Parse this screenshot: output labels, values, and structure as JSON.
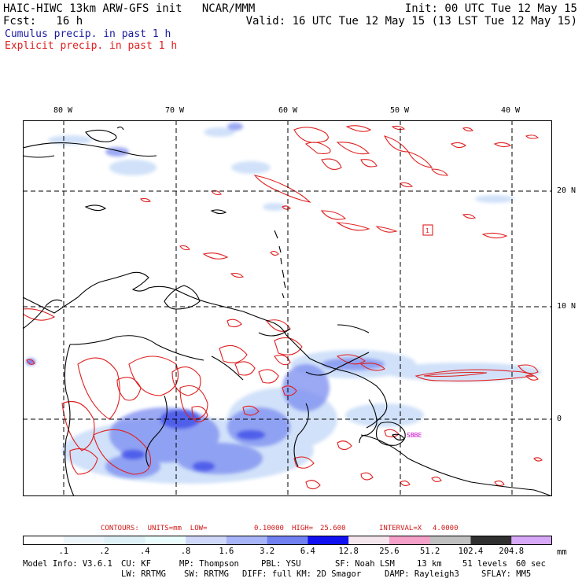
{
  "header": {
    "line1_left": "HAIC-HIWC 13km ARW-GFS init   NCAR/MMM",
    "line1_right": "Init: 00 UTC Tue 12 May 15",
    "line2_left": "Fcst:   16 h",
    "line2_right": "Valid: 16 UTC Tue 12 May 15 (13 LST Tue 12 May 15)",
    "legend_cumulus": "Cumulus precip. in past 1 h",
    "legend_explicit": "Explicit precip. in past 1 h"
  },
  "map": {
    "lon_labels": [
      "80 W",
      "70 W",
      "60 W",
      "50 W",
      "40 W"
    ],
    "lat_labels": [
      "20 N",
      "10 N",
      "0"
    ],
    "place_labels": [
      "SBBE"
    ],
    "box_label": "1",
    "colors": {
      "coast": "#000000",
      "grid": "#000000",
      "explicit_contour": "#e02020",
      "cumulus_light": "#c8dcf8",
      "cumulus_mid": "#7a8cf0",
      "cumulus_dark": "#3a4ae8",
      "place_label": "#cc00cc"
    }
  },
  "contours_line": {
    "prefix": "CONTOURS:  UNITS=mm  LOW=",
    "low": "0.10000",
    "high_label": "HIGH=",
    "high": "25.600",
    "interval_label": "INTERVAL=X",
    "interval": "4.0000"
  },
  "colorbar": {
    "ticks": [
      ".1",
      ".2",
      ".4",
      ".8",
      "1.6",
      "3.2",
      "6.4",
      "12.8",
      "25.6",
      "51.2",
      "102.4",
      "204.8"
    ],
    "unit": "mm",
    "colors": [
      "#ffffff",
      "#eef6fb",
      "#dff0f6",
      "#eafcfc",
      "#cfd8f8",
      "#a8b4f8",
      "#7080f0",
      "#1010f0",
      "#f4e6ec",
      "#f4a0c8",
      "#c0c0c0",
      "#303030",
      "#d8a8f8"
    ]
  },
  "footer": {
    "model": "Model Info: V3.6.1",
    "cu": "CU: KF",
    "mp": "MP: Thompson",
    "pbl": "PBL: YSU",
    "sf": "SF: Noah LSM",
    "res": "13 km",
    "levels": "51 levels",
    "dt": "60 sec",
    "lw": "LW: RRTMG",
    "sw": "SW: RRTMG",
    "diff": "DIFF: full",
    "km": "KM: 2D Smagor",
    "damp": "DAMP: Rayleigh3",
    "sflay": "SFLAY: MM5"
  }
}
